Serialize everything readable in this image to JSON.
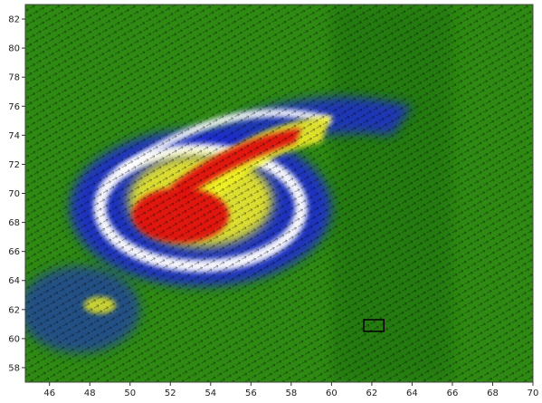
{
  "chart_data": {
    "type": "heatmap",
    "title": "",
    "xlabel": "",
    "ylabel": "",
    "xlim": [
      44.8,
      70
    ],
    "ylim": [
      57,
      83
    ],
    "x_ticks": [
      46,
      48,
      50,
      52,
      54,
      56,
      58,
      60,
      62,
      64,
      66,
      68,
      70
    ],
    "y_ticks": [
      58,
      60,
      62,
      64,
      66,
      68,
      70,
      72,
      74,
      76,
      78,
      80,
      82
    ],
    "x_tick_labels": [
      "46",
      "48",
      "50",
      "52",
      "54",
      "56",
      "58",
      "60",
      "62",
      "64",
      "66",
      "68",
      "70"
    ],
    "y_tick_labels": [
      "58",
      "60",
      "62",
      "64",
      "66",
      "68",
      "70",
      "72",
      "74",
      "76",
      "78",
      "80",
      "82"
    ],
    "colorscale": {
      "background": "#2e8a12",
      "low": "#1e6e10",
      "blue": "#1a2ad0",
      "yellow": "#f0f020",
      "red": "#e01010",
      "white": "#ffffff"
    },
    "overlay": "wind-vector-arrows",
    "features": {
      "cyclone_center": [
        52.5,
        68.5
      ],
      "red_core": [
        52.5,
        68.5
      ],
      "red_streak": [
        [
          52.0,
          70.5
        ],
        [
          58.5,
          74.5
        ]
      ],
      "white_ring_center": [
        53.5,
        69.0
      ],
      "white_ring_radius": [
        5.0,
        4.0
      ],
      "white_arc_end": [
        60,
        75
      ],
      "yellow_patch": [
        48.5,
        62.3
      ],
      "dark_band_x_range": [
        60,
        66
      ]
    },
    "marker_box": {
      "x": [
        61.6,
        62.6
      ],
      "y": [
        60.5,
        61.3
      ],
      "color": "#000000"
    }
  }
}
